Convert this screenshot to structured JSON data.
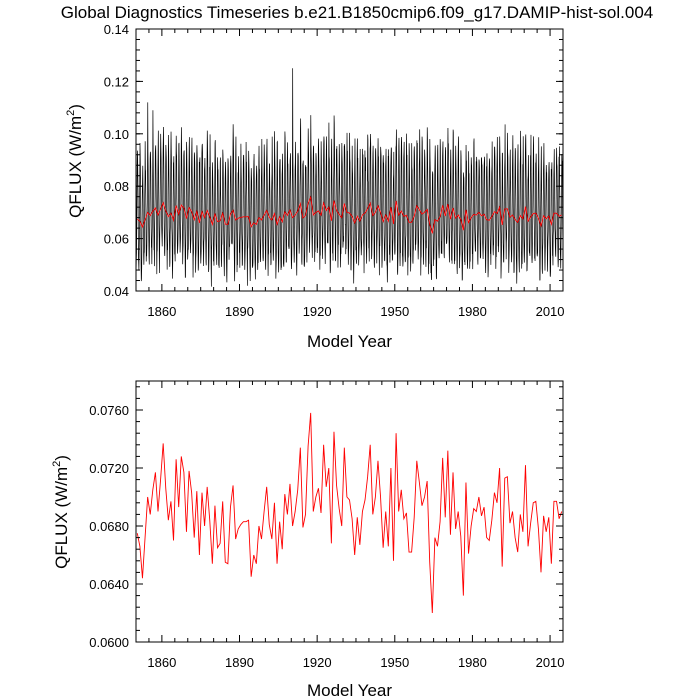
{
  "title": "Global Diagnostics Timeseries b.e21.B1850cmip6.f09_g17.DAMIP-hist-sol.004",
  "colors": {
    "monthly": "#000000",
    "annual": "#ff0000",
    "frame": "#000000"
  },
  "chart_data": [
    {
      "type": "line",
      "xlabel": "Model Year",
      "ylabel": "QFLUX (W/m",
      "ylabel_sup": "2",
      "ylabel_close": ")",
      "xlim": [
        1850,
        2015
      ],
      "ylim": [
        0.04,
        0.14
      ],
      "x_ticks": [
        1860,
        1890,
        1920,
        1950,
        1980,
        2010
      ],
      "x_tick_labels": [
        "1860",
        "1890",
        "1920",
        "1950",
        "1980",
        "2010"
      ],
      "y_ticks": [
        0.04,
        0.06,
        0.08,
        0.1,
        0.12,
        0.14
      ],
      "y_tick_labels": [
        "0.04",
        "0.06",
        "0.08",
        "0.10",
        "0.12",
        "0.14"
      ],
      "grid": false,
      "series": [
        {
          "color": "#000000",
          "resolution": "monthly",
          "x_start": 1850.04,
          "x_step": 0.0833333,
          "annual_means_ref": "annual",
          "summer_peak_range": [
            0.082,
            0.112
          ],
          "winter_trough_range": [
            0.045,
            0.06
          ],
          "notable_points": [
            {
              "x": 1854.5,
              "y": 0.112
            },
            {
              "x": 1856.5,
              "y": 0.109
            },
            {
              "x": 1910.5,
              "y": 0.125
            },
            {
              "x": 1926.5,
              "y": 0.107
            },
            {
              "x": 1893.0,
              "y": 0.042
            },
            {
              "x": 1873.0,
              "y": 0.047
            },
            {
              "x": 1906.0,
              "y": 0.048
            }
          ]
        },
        {
          "color": "#ff0000",
          "resolution": "annual",
          "ref": "annual"
        }
      ]
    },
    {
      "type": "line",
      "xlabel": "Model Year",
      "ylabel": "QFLUX (W/m",
      "ylabel_sup": "2",
      "ylabel_close": ")",
      "xlim": [
        1850,
        2015
      ],
      "ylim": [
        0.06,
        0.078
      ],
      "x_ticks": [
        1860,
        1890,
        1920,
        1950,
        1980,
        2010
      ],
      "x_tick_labels": [
        "1860",
        "1890",
        "1920",
        "1950",
        "1980",
        "2010"
      ],
      "y_ticks": [
        0.06,
        0.064,
        0.068,
        0.072,
        0.076
      ],
      "y_tick_labels": [
        "0.0600",
        "0.0640",
        "0.0680",
        "0.0720",
        "0.0760"
      ],
      "grid": false,
      "series": [
        {
          "color": "#ff0000",
          "resolution": "annual",
          "ref": "annual"
        }
      ]
    }
  ],
  "annual": {
    "x_start": 1850.5,
    "values": [
      0.0675,
      0.0666,
      0.0644,
      0.0672,
      0.07,
      0.0688,
      0.0705,
      0.0717,
      0.069,
      0.0712,
      0.0737,
      0.0706,
      0.0684,
      0.0697,
      0.067,
      0.0726,
      0.0693,
      0.0728,
      0.0717,
      0.0676,
      0.0718,
      0.0703,
      0.0672,
      0.0704,
      0.066,
      0.0703,
      0.068,
      0.0707,
      0.0684,
      0.0654,
      0.0694,
      0.0665,
      0.0668,
      0.0697,
      0.0655,
      0.0654,
      0.0693,
      0.0708,
      0.0671,
      0.0678,
      0.0681,
      0.0683,
      0.0683,
      0.0684,
      0.0645,
      0.066,
      0.0654,
      0.068,
      0.0671,
      0.069,
      0.0707,
      0.0681,
      0.0671,
      0.0696,
      0.0654,
      0.0683,
      0.0664,
      0.0702,
      0.0688,
      0.0709,
      0.068,
      0.069,
      0.0705,
      0.0734,
      0.0679,
      0.0688,
      0.0735,
      0.0758,
      0.069,
      0.07,
      0.0706,
      0.0689,
      0.0736,
      0.0707,
      0.072,
      0.0668,
      0.0745,
      0.0708,
      0.0692,
      0.068,
      0.0734,
      0.07,
      0.0698,
      0.0685,
      0.066,
      0.0686,
      0.0667,
      0.069,
      0.0698,
      0.0714,
      0.0736,
      0.0688,
      0.07,
      0.0725,
      0.07,
      0.0665,
      0.069,
      0.0666,
      0.072,
      0.0656,
      0.0744,
      0.069,
      0.0705,
      0.0685,
      0.0689,
      0.0662,
      0.0662,
      0.0686,
      0.0725,
      0.071,
      0.0694,
      0.07,
      0.0711,
      0.0655,
      0.062,
      0.0672,
      0.0666,
      0.0683,
      0.0727,
      0.0686,
      0.0732,
      0.0674,
      0.0717,
      0.0678,
      0.069,
      0.0673,
      0.0632,
      0.071,
      0.0661,
      0.068,
      0.0692,
      0.069,
      0.07,
      0.0687,
      0.0693,
      0.0672,
      0.067,
      0.0684,
      0.0703,
      0.0696,
      0.072,
      0.0652,
      0.0713,
      0.0714,
      0.0682,
      0.069,
      0.0672,
      0.0662,
      0.0688,
      0.0676,
      0.0722,
      0.0666,
      0.0682,
      0.0696,
      0.0697,
      0.0678,
      0.0648,
      0.0687,
      0.0676,
      0.0686,
      0.0654,
      0.0697,
      0.0697,
      0.0685,
      0.069
    ]
  },
  "axis_titles": {
    "top_xlabel": "Model Year",
    "bottom_xlabel": "Model Year"
  }
}
